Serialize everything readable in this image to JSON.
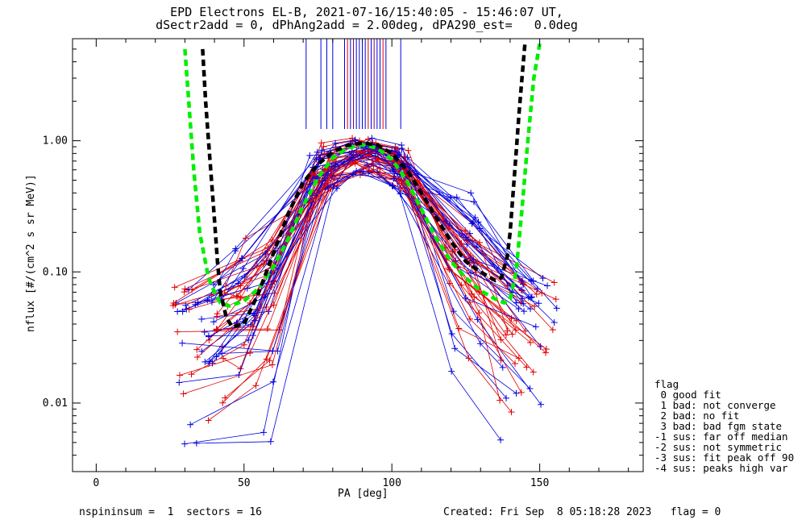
{
  "chart_data": {
    "type": "line",
    "title": "EPD Electrons EL-B, 2021-07-16/15:40:05 - 15:46:07 UT,",
    "subtitle": "dSectr2add = 0, dPhAng2add = 2.00deg, dPA290_est=   0.0deg",
    "xlabel": "PA [deg]",
    "ylabel": "nflux [#/(cm^2 s sr MeV)]",
    "xlim": [
      -8,
      185
    ],
    "ylim": [
      0.003,
      6.0
    ],
    "yscale": "log",
    "xticks": [
      0,
      50,
      100,
      150
    ],
    "yticks": [
      0.01,
      0.1,
      1.0
    ],
    "ytick_labels": [
      "0.01",
      "0.10",
      "1.00"
    ],
    "colors": {
      "red": "#e00000",
      "blue": "#0000e0",
      "green": "#00ee00",
      "black": "#000000",
      "purple": "#800080"
    },
    "vertical_marks": [
      {
        "x": 71,
        "color": "#0000e0"
      },
      {
        "x": 76,
        "color": "#0000e0"
      },
      {
        "x": 78,
        "color": "#0000e0"
      },
      {
        "x": 80,
        "color": "#0000e0"
      },
      {
        "x": 84,
        "color": "#0000e0"
      },
      {
        "x": 85,
        "color": "#e00000"
      },
      {
        "x": 86,
        "color": "#0000e0"
      },
      {
        "x": 87,
        "color": "#800080"
      },
      {
        "x": 88,
        "color": "#0000e0"
      },
      {
        "x": 89,
        "color": "#0000e0"
      },
      {
        "x": 90,
        "color": "#0000e0"
      },
      {
        "x": 91,
        "color": "#0000e0"
      },
      {
        "x": 92,
        "color": "#e00000"
      },
      {
        "x": 93,
        "color": "#0000e0"
      },
      {
        "x": 94,
        "color": "#800080"
      },
      {
        "x": 95,
        "color": "#0000e0"
      },
      {
        "x": 96,
        "color": "#0000e0"
      },
      {
        "x": 97,
        "color": "#e00000"
      },
      {
        "x": 98,
        "color": "#0000e0"
      },
      {
        "x": 103,
        "color": "#0000e0"
      }
    ],
    "fit_curves": [
      {
        "color": "#00ee00",
        "points": [
          [
            30,
            5.0
          ],
          [
            33,
            0.6
          ],
          [
            35,
            0.2
          ],
          [
            38,
            0.09
          ],
          [
            40,
            0.07
          ],
          [
            42,
            0.058
          ],
          [
            45,
            0.055
          ],
          [
            50,
            0.06
          ],
          [
            55,
            0.075
          ],
          [
            60,
            0.11
          ],
          [
            65,
            0.18
          ],
          [
            70,
            0.32
          ],
          [
            75,
            0.52
          ],
          [
            80,
            0.74
          ],
          [
            85,
            0.88
          ],
          [
            90,
            0.93
          ],
          [
            95,
            0.88
          ],
          [
            100,
            0.72
          ],
          [
            105,
            0.5
          ],
          [
            110,
            0.3
          ],
          [
            115,
            0.18
          ],
          [
            120,
            0.12
          ],
          [
            125,
            0.09
          ],
          [
            130,
            0.072
          ],
          [
            135,
            0.062
          ],
          [
            138,
            0.058
          ],
          [
            140,
            0.062
          ],
          [
            142,
            0.1
          ],
          [
            144,
            0.3
          ],
          [
            146,
            1.0
          ],
          [
            148,
            3.0
          ],
          [
            150,
            5.5
          ]
        ]
      },
      {
        "color": "#000000",
        "points": [
          [
            36,
            5.0
          ],
          [
            37,
            2.0
          ],
          [
            38,
            1.0
          ],
          [
            39,
            0.5
          ],
          [
            40,
            0.25
          ],
          [
            41,
            0.12
          ],
          [
            42,
            0.07
          ],
          [
            44,
            0.045
          ],
          [
            46,
            0.038
          ],
          [
            50,
            0.04
          ],
          [
            55,
            0.07
          ],
          [
            60,
            0.14
          ],
          [
            65,
            0.28
          ],
          [
            70,
            0.48
          ],
          [
            75,
            0.66
          ],
          [
            80,
            0.82
          ],
          [
            85,
            0.92
          ],
          [
            90,
            0.96
          ],
          [
            95,
            0.93
          ],
          [
            100,
            0.8
          ],
          [
            105,
            0.6
          ],
          [
            110,
            0.4
          ],
          [
            115,
            0.26
          ],
          [
            120,
            0.17
          ],
          [
            125,
            0.12
          ],
          [
            130,
            0.1
          ],
          [
            135,
            0.086
          ],
          [
            137,
            0.09
          ],
          [
            139,
            0.13
          ],
          [
            140,
            0.2
          ],
          [
            141,
            0.4
          ],
          [
            142,
            0.8
          ],
          [
            143,
            1.6
          ],
          [
            144,
            3.0
          ],
          [
            145,
            5.5
          ]
        ]
      }
    ],
    "legend": {
      "title": "flag",
      "entries": [
        " 0 good fit",
        " 1 bad: not converge",
        " 2 bad: no fit",
        " 3 bad: bad fgm state",
        "-1 sus: far off median",
        "-2 sus: not symmetric",
        "-3 sus: fit peak off 90",
        "-4 sus: peaks high var"
      ]
    },
    "footer_left": "nspininsum =  1  sectors = 16",
    "footer_right": "Created: Fri Sep  8 05:18:28 2023   flag = 0"
  }
}
